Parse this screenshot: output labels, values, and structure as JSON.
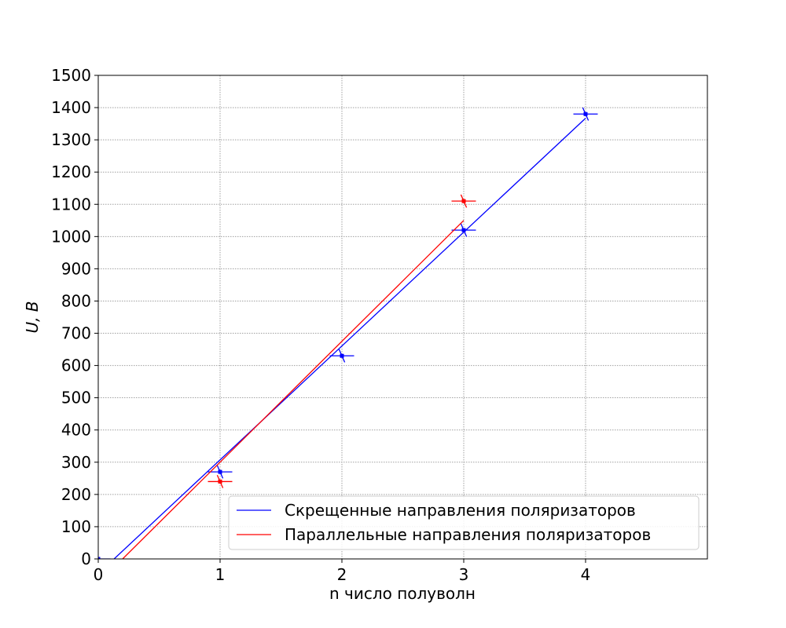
{
  "chart_data": {
    "type": "scatter",
    "title": "",
    "xlabel": "n число полуволн",
    "ylabel": "U, В",
    "xlim": [
      0,
      5
    ],
    "ylim": [
      0,
      1500
    ],
    "xticks": [
      0,
      1,
      2,
      3,
      4
    ],
    "yticks": [
      0,
      100,
      200,
      300,
      400,
      500,
      600,
      700,
      800,
      900,
      1000,
      1100,
      1200,
      1300,
      1400,
      1500
    ],
    "grid": true,
    "legend_position": "lower-right",
    "series": [
      {
        "name": "Скрещенные направления поляризаторов",
        "color": "#0000ff",
        "points": [
          {
            "x": 0,
            "y": 0
          },
          {
            "x": 1,
            "y": 270
          },
          {
            "x": 2,
            "y": 630
          },
          {
            "x": 3,
            "y": 1020
          },
          {
            "x": 4,
            "y": 1380
          }
        ],
        "fit_line": {
          "x": [
            0.13,
            4.0
          ],
          "y": [
            0,
            1367
          ]
        },
        "error_bars": {
          "x_err": 0.1,
          "y_err": 20
        }
      },
      {
        "name": "Параллельные направления поляризаторов",
        "color": "#ff0000",
        "points": [
          {
            "x": 1,
            "y": 240
          },
          {
            "x": 3,
            "y": 1110
          }
        ],
        "fit_line": {
          "x": [
            0.2,
            3.0
          ],
          "y": [
            0,
            1050
          ]
        },
        "error_bars": {
          "x_err": 0.1,
          "y_err": 20
        }
      }
    ]
  }
}
